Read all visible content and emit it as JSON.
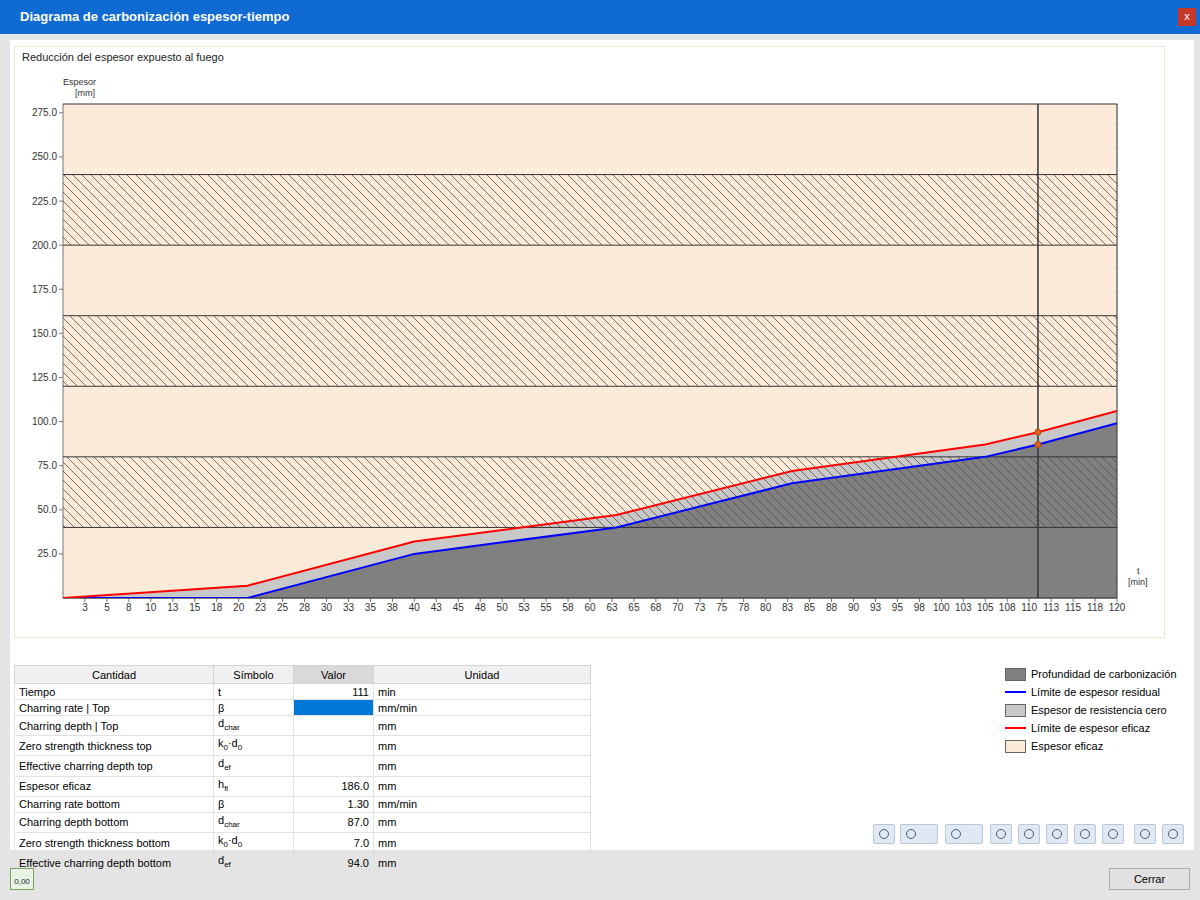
{
  "window": {
    "title": "Diagrama de carbonización espesor-tiempo",
    "close": "x"
  },
  "chart_data": {
    "type": "line",
    "title": "Reducción del espesor expuesto al fuego",
    "x_label": [
      "t",
      "[min]"
    ],
    "y_label": [
      "Espesor",
      "[mm]"
    ],
    "stacked": true,
    "grid": true,
    "x": [
      0,
      21,
      40,
      63,
      83,
      105,
      111,
      120
    ],
    "xlim": [
      0,
      120
    ],
    "xticks": [
      {
        "value": 2.5,
        "label": "3"
      },
      5,
      {
        "value": 7.5,
        "label": "8"
      },
      10,
      {
        "value": 12.5,
        "label": "13"
      },
      15,
      {
        "value": 17.5,
        "label": "18"
      },
      20,
      {
        "value": 22.5,
        "label": "23"
      },
      25,
      {
        "value": 27.5,
        "label": "28"
      },
      30,
      {
        "value": 32.5,
        "label": "33"
      },
      35,
      {
        "value": 37.5,
        "label": "38"
      },
      40,
      {
        "value": 42.5,
        "label": "43"
      },
      45,
      {
        "value": 47.5,
        "label": "48"
      },
      50,
      {
        "value": 52.5,
        "label": "53"
      },
      55,
      {
        "value": 57.5,
        "label": "58"
      },
      60,
      {
        "value": 62.5,
        "label": "63"
      },
      65,
      {
        "value": 67.5,
        "label": "68"
      },
      70,
      {
        "value": 72.5,
        "label": "73"
      },
      75,
      {
        "value": 77.5,
        "label": "78"
      },
      80,
      {
        "value": 82.5,
        "label": "83"
      },
      85,
      {
        "value": 87.5,
        "label": "88"
      },
      90,
      {
        "value": 92.5,
        "label": "93"
      },
      95,
      {
        "value": 97.5,
        "label": "98"
      },
      100,
      {
        "value": 102.5,
        "label": "103"
      },
      105,
      {
        "value": 107.5,
        "label": "108"
      },
      110,
      {
        "value": 112.5,
        "label": "113"
      },
      115,
      {
        "value": 117.5,
        "label": "118"
      },
      120
    ],
    "ylim": [
      0,
      280
    ],
    "yticks": [
      {
        "value": 25,
        "label": "25.0"
      },
      {
        "value": 50,
        "label": "50.0"
      },
      {
        "value": 75,
        "label": "75.0"
      },
      {
        "value": 100,
        "label": "100.0"
      },
      {
        "value": 125,
        "label": "125.0"
      },
      {
        "value": 150,
        "label": "150.0"
      },
      {
        "value": 175,
        "label": "175.0"
      },
      {
        "value": 200,
        "label": "200.0"
      },
      {
        "value": 225,
        "label": "225.0"
      },
      {
        "value": 250,
        "label": "250.0"
      },
      {
        "value": 275,
        "label": "275.0"
      }
    ],
    "series": [
      {
        "name": "Profundidad de carbonización",
        "type": "area",
        "color": "#808080",
        "values": [
          0,
          0,
          25,
          40,
          65,
          80,
          87,
          99
        ]
      },
      {
        "name": "Límite de espesor residual",
        "type": "line",
        "color": "#0000ff",
        "values": [
          0,
          0,
          25,
          40,
          65,
          80,
          87,
          99
        ]
      },
      {
        "name": "Espesor de resistencia cero",
        "type": "area",
        "color": "#c8c8c8",
        "values": [
          0,
          7,
          7,
          7,
          7,
          7,
          7,
          7
        ]
      },
      {
        "name": "Límite de espesor eficaz",
        "type": "line",
        "color": "#ff0000",
        "values": [
          0,
          7,
          32,
          47,
          72,
          87,
          94,
          106
        ]
      },
      {
        "name": "Espesor eficaz",
        "type": "area",
        "color": "#fdebd9",
        "values": [
          280,
          273,
          248,
          233,
          208,
          193,
          186,
          174
        ]
      }
    ],
    "layers": [
      {
        "from": 0,
        "to": 40,
        "hatched": false
      },
      {
        "from": 40,
        "to": 80,
        "hatched": true
      },
      {
        "from": 80,
        "to": 120,
        "hatched": false
      },
      {
        "from": 120,
        "to": 160,
        "hatched": true
      },
      {
        "from": 160,
        "to": 200,
        "hatched": false
      },
      {
        "from": 200,
        "to": 240,
        "hatched": true
      },
      {
        "from": 240,
        "to": 280,
        "hatched": false
      }
    ],
    "cursor": 111
  },
  "table": {
    "header": [
      "Cantidad",
      "Símbolo",
      "Valor",
      "Unidad"
    ],
    "rows": [
      {
        "quantity": "Tiempo",
        "symbol": [
          {
            "text": "t"
          }
        ],
        "value": "111",
        "unit": "min"
      },
      {
        "quantity": "Charring rate | Top",
        "symbol": [
          {
            "text": "β"
          }
        ],
        "value": null,
        "unit": "mm/min",
        "selected": true
      },
      {
        "quantity": "Charring depth | Top",
        "symbol": [
          {
            "text": "d"
          },
          {
            "text": "char",
            "sub": true
          }
        ],
        "value": null,
        "unit": "mm"
      },
      {
        "quantity": "Zero strength thickness top",
        "symbol": [
          {
            "text": "k"
          },
          {
            "text": "0",
            "sub": true
          },
          {
            "text": "·d"
          },
          {
            "text": "0",
            "sub": true
          }
        ],
        "value": null,
        "unit": "mm"
      },
      {
        "quantity": "Effective charring depth top",
        "symbol": [
          {
            "text": "d"
          },
          {
            "text": "ef",
            "sub": true
          }
        ],
        "value": null,
        "unit": "mm"
      },
      {
        "quantity": "Espesor eficaz",
        "symbol": [
          {
            "text": "h"
          },
          {
            "text": "fi",
            "sub": true
          }
        ],
        "value": "186.0",
        "unit": "mm"
      },
      {
        "quantity": "Charring rate bottom",
        "symbol": [
          {
            "text": "β"
          }
        ],
        "value": "1.30",
        "unit": "mm/min"
      },
      {
        "quantity": "Charring depth bottom",
        "symbol": [
          {
            "text": "d"
          },
          {
            "text": "char",
            "sub": true
          }
        ],
        "value": "87.0",
        "unit": "mm"
      },
      {
        "quantity": "Zero strength thickness bottom",
        "symbol": [
          {
            "text": "k"
          },
          {
            "text": "0",
            "sub": true
          },
          {
            "text": "·d"
          },
          {
            "text": "0",
            "sub": true
          }
        ],
        "value": "7.0",
        "unit": "mm"
      },
      {
        "quantity": "Effective charring depth bottom",
        "symbol": [
          {
            "text": "d"
          },
          {
            "text": "ef",
            "sub": true
          }
        ],
        "value": "94.0",
        "unit": "mm"
      }
    ]
  },
  "footer": {
    "icon_text": "0,00",
    "button": "Cerrar"
  }
}
